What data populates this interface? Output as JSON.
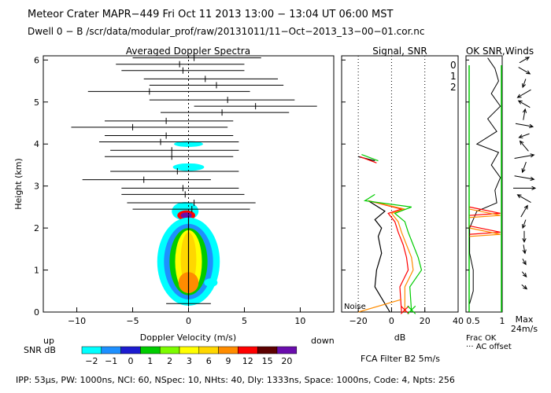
{
  "header": {
    "line1": "Meteor Crater   MAPR−449   Fri Oct 11 2013 13:00 − 13:04 UT 06:00 MST",
    "line2": "Dwell   0 −  B     /scr/data/modular_prof/raw/20131011/11−Oct−2013_13−00−01.cor.nc"
  },
  "footer": {
    "params": "IPP:  53μs,   PW: 1000ns,   NCI:  60,   NSpec: 10,  NHts: 40,   Dly: 1333ns,   Space: 1000ns,   Code: 4,   Npts: 256",
    "fca": "FCA Filter B2    5m/s"
  },
  "colors": {
    "black_line": "#000000",
    "red_line": "#ff0000",
    "orange_line": "#ff8c00",
    "green_line": "#00cc00",
    "label_0": "#ff0000",
    "label_1": "#ffa500",
    "label_2": "#00cc00"
  },
  "chart_data": [
    {
      "type": "heatmap",
      "title": "Averaged Doppler Spectra",
      "xlabel": "Doppler Velocity (m/s)",
      "ylabel": "Height (km)",
      "xlim": [
        -13,
        13
      ],
      "ylim": [
        0,
        6.1
      ],
      "xticks": [
        -10,
        -5,
        0,
        5,
        10
      ],
      "yticks": [
        0,
        1,
        2,
        3,
        4,
        5,
        6
      ],
      "annot_up": "up",
      "annot_down": "down",
      "spectra_segments": [
        {
          "h": 6.05,
          "x0": -5.0,
          "x1": 6.5,
          "xc": 0.5
        },
        {
          "h": 5.9,
          "x0": -6.5,
          "x1": 5.0,
          "xc": -0.8
        },
        {
          "h": 5.75,
          "x0": -6.0,
          "x1": 5.0,
          "xc": -0.5
        },
        {
          "h": 5.55,
          "x0": -4.0,
          "x1": 8.0,
          "xc": 1.5
        },
        {
          "h": 5.4,
          "x0": -3.5,
          "x1": 8.5,
          "xc": 2.5
        },
        {
          "h": 5.25,
          "x0": -9.0,
          "x1": 5.5,
          "xc": -3.5
        },
        {
          "h": 5.05,
          "x0": -3.5,
          "x1": 9.5,
          "xc": 3.5
        },
        {
          "h": 4.9,
          "x0": 0.5,
          "x1": 11.5,
          "xc": 6.0
        },
        {
          "h": 4.75,
          "x0": -2.5,
          "x1": 9.0,
          "xc": 3.0
        },
        {
          "h": 4.55,
          "x0": -7.5,
          "x1": 4.0,
          "xc": -2.0
        },
        {
          "h": 4.4,
          "x0": -10.5,
          "x1": 3.5,
          "xc": -5.0
        },
        {
          "h": 4.2,
          "x0": -7.5,
          "x1": 4.0,
          "xc": -2.0
        },
        {
          "h": 4.05,
          "x0": -8.0,
          "x1": 4.5,
          "xc": -2.5
        },
        {
          "h": 3.85,
          "x0": -7.0,
          "x1": 4.5,
          "xc": -1.5
        },
        {
          "h": 3.7,
          "x0": -7.5,
          "x1": 4.0,
          "xc": -1.5
        },
        {
          "h": 3.35,
          "x0": -7.0,
          "x1": 4.5,
          "xc": -1.0
        },
        {
          "h": 3.15,
          "x0": -9.5,
          "x1": 2.0,
          "xc": -4.0
        },
        {
          "h": 2.95,
          "x0": -6.0,
          "x1": 4.5,
          "xc": -0.5
        },
        {
          "h": 2.8,
          "x0": -6.0,
          "x1": 5.0,
          "xc": -0.3
        },
        {
          "h": 2.6,
          "x0": -5.5,
          "x1": 6.0,
          "xc": 0.5
        },
        {
          "h": 2.45,
          "x0": -5.0,
          "x1": 5.5,
          "xc": 0.3
        },
        {
          "h": 0.2,
          "x0": -2.0,
          "x1": 2.0,
          "xc": 0.0
        }
      ],
      "blobs": [
        {
          "v": 0.0,
          "h": 4.0,
          "rv": 1.3,
          "rh": 0.07,
          "level": "-2"
        },
        {
          "v": 0.0,
          "h": 3.45,
          "rv": 1.4,
          "rh": 0.09,
          "level": "-2"
        },
        {
          "v": -0.3,
          "h": 2.4,
          "rv": 1.2,
          "rh": 0.22,
          "level": "-2"
        },
        {
          "v": -0.2,
          "h": 2.3,
          "rv": 0.8,
          "rh": 0.12,
          "level": "12"
        },
        {
          "v": -0.2,
          "h": 2.3,
          "rv": 0.5,
          "rh": 0.07,
          "level": "20"
        },
        {
          "v": 0.0,
          "h": 1.2,
          "rv": 2.8,
          "rh": 1.05,
          "level": "-2"
        },
        {
          "v": 0.0,
          "h": 1.2,
          "rv": 2.2,
          "rh": 0.9,
          "level": "-1"
        },
        {
          "v": 0.0,
          "h": 1.2,
          "rv": 1.7,
          "rh": 0.8,
          "level": "1"
        },
        {
          "v": 0.0,
          "h": 1.2,
          "rv": 1.2,
          "rh": 0.75,
          "level": "3"
        },
        {
          "v": 0.0,
          "h": 1.25,
          "rv": 0.7,
          "rh": 0.65,
          "level": "6"
        },
        {
          "v": 2.0,
          "h": 0.7,
          "rv": 0.6,
          "rh": 0.1,
          "level": "-2"
        },
        {
          "v": 0.0,
          "h": 0.7,
          "rv": 0.9,
          "rh": 0.25,
          "level": "9"
        }
      ],
      "colorbar": {
        "label": "SNR dB",
        "levels": [
          "−2",
          "−1",
          "0",
          "1",
          "2",
          "3",
          "6",
          "9",
          "12",
          "15",
          "20"
        ],
        "colors": [
          "#00ffff",
          "#1e90ff",
          "#1c1cd0",
          "#00cc00",
          "#7cfc00",
          "#ffff00",
          "#ffd700",
          "#ff8c00",
          "#ff0000",
          "#5c0000",
          "#6a0dad"
        ]
      }
    },
    {
      "type": "line",
      "title": "Signal, SNR",
      "xlabel": "dB",
      "xlim": [
        -30,
        40
      ],
      "ylim": [
        0,
        6.1
      ],
      "xticks": [
        -20,
        0,
        20,
        40
      ],
      "dotted_x": [
        -20,
        0,
        20
      ],
      "noise_label": "Noise",
      "series_labels": [
        "0",
        "1",
        "2"
      ],
      "series": [
        {
          "name": "black",
          "points": [
            [
              -1,
              0.0
            ],
            [
              -10,
              0.6
            ],
            [
              -9,
              1.0
            ],
            [
              -6,
              1.4
            ],
            [
              -8,
              1.8
            ],
            [
              -6,
              2.0
            ],
            [
              -10,
              2.2
            ],
            [
              -4,
              2.4
            ],
            [
              -14,
              2.65
            ]
          ]
        },
        {
          "name": "red",
          "points": [
            [
              6,
              0.0
            ],
            [
              5,
              0.6
            ],
            [
              10,
              1.0
            ],
            [
              9,
              1.3
            ],
            [
              7,
              1.6
            ],
            [
              4,
              1.9
            ],
            [
              2,
              2.15
            ],
            [
              -2,
              2.35
            ],
            [
              6,
              2.45
            ],
            [
              -14,
              2.65
            ]
          ]
        },
        {
          "name": "orange",
          "points": [
            [
              8,
              0.0
            ],
            [
              8,
              0.6
            ],
            [
              13,
              1.0
            ],
            [
              12,
              1.3
            ],
            [
              9,
              1.6
            ],
            [
              6,
              1.9
            ],
            [
              4,
              2.15
            ],
            [
              0,
              2.35
            ],
            [
              8,
              2.45
            ],
            [
              -14,
              2.65
            ]
          ]
        },
        {
          "name": "green",
          "points": [
            [
              12,
              0.0
            ],
            [
              11,
              0.6
            ],
            [
              18,
              1.0
            ],
            [
              16,
              1.3
            ],
            [
              13,
              1.6
            ],
            [
              10,
              1.9
            ],
            [
              8,
              2.15
            ],
            [
              2,
              2.35
            ],
            [
              12,
              2.5
            ],
            [
              -16,
              2.65
            ],
            [
              -10,
              2.8
            ]
          ]
        },
        {
          "name": "black_upper",
          "points": [
            [
              -20,
              3.7
            ],
            [
              -10,
              3.6
            ]
          ]
        },
        {
          "name": "red_upper",
          "points": [
            [
              -19,
              3.7
            ],
            [
              -9,
              3.55
            ]
          ]
        },
        {
          "name": "green_upper",
          "points": [
            [
              -18,
              3.75
            ],
            [
              -8,
              3.6
            ]
          ]
        },
        {
          "name": "orange_noise",
          "points": [
            [
              -20,
              0.0
            ],
            [
              6,
              0.3
            ]
          ]
        }
      ]
    },
    {
      "type": "line",
      "title": "OK SNR,Winds",
      "xlabel_left": "Frac OK",
      "xlabel_sub": "··· AC offset",
      "xticks": [
        "0.5",
        "1"
      ],
      "max_label": "Max",
      "max_value": "24m/s",
      "frac_ok_points": [
        [
          0.6,
          6.05
        ],
        [
          0.8,
          5.8
        ],
        [
          0.9,
          5.5
        ],
        [
          0.7,
          5.2
        ],
        [
          0.95,
          4.9
        ],
        [
          0.6,
          4.6
        ],
        [
          0.85,
          4.3
        ],
        [
          0.3,
          4.0
        ],
        [
          0.9,
          3.8
        ],
        [
          0.7,
          3.5
        ],
        [
          0.95,
          3.2
        ],
        [
          0.8,
          2.9
        ],
        [
          0.85,
          2.6
        ],
        [
          0.3,
          2.4
        ],
        [
          0.1,
          2.0
        ],
        [
          0.1,
          1.4
        ],
        [
          0.2,
          1.0
        ],
        [
          0.2,
          0.5
        ],
        [
          0.1,
          0.2
        ]
      ],
      "wind_arrows": [
        {
          "h": 6.0,
          "dir": 60,
          "len": 0.5
        },
        {
          "h": 5.75,
          "dir": 120,
          "len": 0.6
        },
        {
          "h": 5.45,
          "dir": 200,
          "len": 0.4
        },
        {
          "h": 5.2,
          "dir": 240,
          "len": 0.7
        },
        {
          "h": 4.95,
          "dir": 300,
          "len": 0.6
        },
        {
          "h": 4.7,
          "dir": 10,
          "len": 0.5
        },
        {
          "h": 4.45,
          "dir": 100,
          "len": 0.8
        },
        {
          "h": 4.2,
          "dir": 250,
          "len": 0.5
        },
        {
          "h": 3.95,
          "dir": 320,
          "len": 0.6
        },
        {
          "h": 3.7,
          "dir": 80,
          "len": 0.9
        },
        {
          "h": 3.45,
          "dir": 200,
          "len": 0.5
        },
        {
          "h": 3.2,
          "dir": 100,
          "len": 0.9
        },
        {
          "h": 2.95,
          "dir": 90,
          "len": 1.0
        },
        {
          "h": 2.7,
          "dir": 300,
          "len": 0.7
        },
        {
          "h": 2.4,
          "dir": 30,
          "len": 0.6
        },
        {
          "h": 2.1,
          "dir": 200,
          "len": 0.4
        },
        {
          "h": 1.8,
          "dir": 180,
          "len": 0.5
        },
        {
          "h": 1.5,
          "dir": 170,
          "len": 0.4
        },
        {
          "h": 1.2,
          "dir": 150,
          "len": 0.3
        },
        {
          "h": 0.9,
          "dir": 140,
          "len": 0.3
        },
        {
          "h": 0.6,
          "dir": 130,
          "len": 0.3
        }
      ]
    }
  ]
}
